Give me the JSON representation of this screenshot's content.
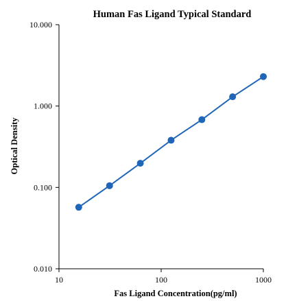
{
  "chart_data": {
    "type": "scatter",
    "title": "Human  Fas  Ligand  Typical  Standard",
    "xlabel": "Fas Ligand  Concentration(pg/ml)",
    "ylabel": "Optical Density",
    "x_scale": "log",
    "y_scale": "log",
    "xlim": [
      10,
      1000
    ],
    "ylim": [
      0.01,
      10
    ],
    "x_ticks": [
      {
        "value": 10,
        "label": "10"
      },
      {
        "value": 100,
        "label": "100"
      },
      {
        "value": 1000,
        "label": "1000"
      }
    ],
    "y_ticks": [
      {
        "value": 0.01,
        "label": "0.010"
      },
      {
        "value": 0.1,
        "label": "0.100"
      },
      {
        "value": 1,
        "label": "1.000"
      },
      {
        "value": 10,
        "label": "10.000"
      }
    ],
    "grid": false,
    "legend": "none",
    "series": [
      {
        "color": "#1f66b8",
        "marker": "circle",
        "connected": true,
        "x": [
          15.6,
          31.25,
          62.5,
          125,
          250,
          500,
          1000
        ],
        "y": [
          0.057,
          0.105,
          0.198,
          0.38,
          0.68,
          1.3,
          2.3
        ]
      }
    ]
  }
}
